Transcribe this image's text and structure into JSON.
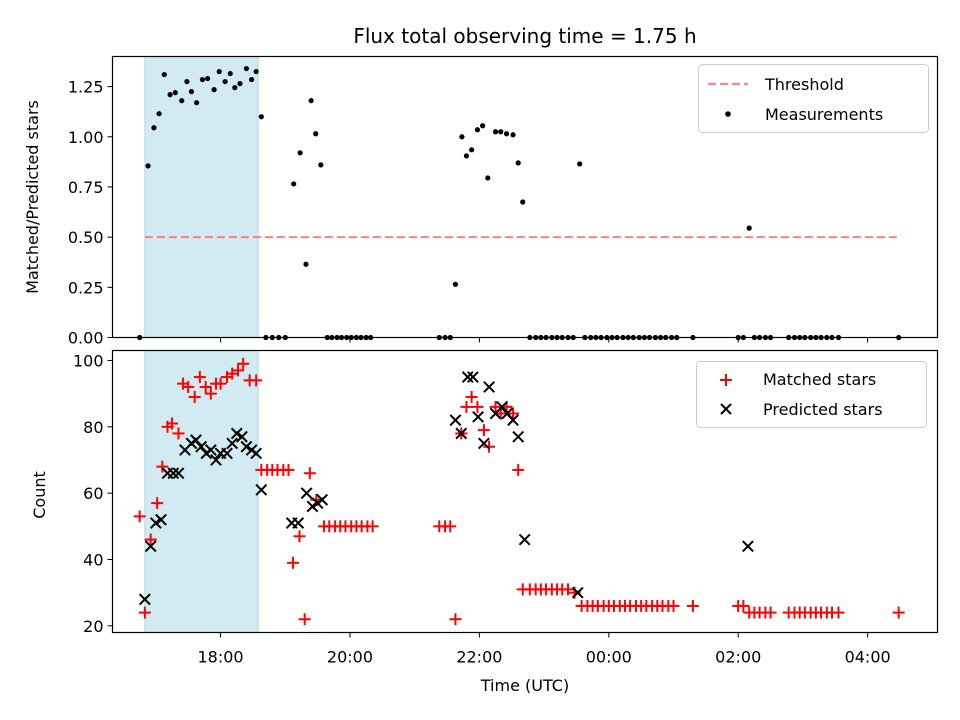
{
  "title": "Flux total observing time = 1.75 h",
  "chart_data": [
    {
      "type": "scatter",
      "panel": "top",
      "ylabel": "Matched/Predicted stars",
      "xlabel": "",
      "ylim": [
        0,
        1.4
      ],
      "xlim": [
        16.33,
        29.08
      ],
      "x_unit": "hours (UTC), values >24 are after midnight",
      "yticks": [
        0,
        0.25,
        0.5,
        0.75,
        1.0,
        1.25
      ],
      "ytick_labels": [
        "0.00",
        "0.25",
        "0.50",
        "0.75",
        "1.00",
        "1.25"
      ],
      "shaded_span": [
        16.83,
        18.58
      ],
      "shaded_color": "#add8e6",
      "threshold": {
        "name": "Threshold",
        "y": 0.5,
        "x": [
          16.83,
          28.5
        ],
        "color": "#ff7f7f"
      },
      "measurements": {
        "name": "Measurements",
        "color": "#000000",
        "points": [
          [
            16.75,
            0
          ],
          [
            16.88,
            0.855
          ],
          [
            16.97,
            1.045
          ],
          [
            17.05,
            1.115
          ],
          [
            17.13,
            1.31
          ],
          [
            17.22,
            1.21
          ],
          [
            17.3,
            1.22
          ],
          [
            17.4,
            1.18
          ],
          [
            17.48,
            1.275
          ],
          [
            17.55,
            1.225
          ],
          [
            17.63,
            1.17
          ],
          [
            17.72,
            1.285
          ],
          [
            17.8,
            1.29
          ],
          [
            17.9,
            1.235
          ],
          [
            17.98,
            1.325
          ],
          [
            18.07,
            1.275
          ],
          [
            18.15,
            1.315
          ],
          [
            18.22,
            1.245
          ],
          [
            18.3,
            1.265
          ],
          [
            18.4,
            1.34
          ],
          [
            18.48,
            1.285
          ],
          [
            18.55,
            1.325
          ],
          [
            18.63,
            1.1
          ],
          [
            18.7,
            0
          ],
          [
            18.8,
            0
          ],
          [
            18.9,
            0
          ],
          [
            19.0,
            0
          ],
          [
            19.13,
            0.765
          ],
          [
            19.23,
            0.92
          ],
          [
            19.32,
            0.365
          ],
          [
            19.4,
            1.18
          ],
          [
            19.47,
            1.015
          ],
          [
            19.55,
            0.86
          ],
          [
            19.65,
            0
          ],
          [
            19.72,
            0
          ],
          [
            19.8,
            0
          ],
          [
            19.87,
            0
          ],
          [
            19.95,
            0
          ],
          [
            20.02,
            0
          ],
          [
            20.1,
            0
          ],
          [
            20.17,
            0
          ],
          [
            20.25,
            0
          ],
          [
            20.32,
            0
          ],
          [
            21.38,
            0
          ],
          [
            21.47,
            0
          ],
          [
            21.55,
            0
          ],
          [
            21.63,
            0.265
          ],
          [
            21.73,
            1.0
          ],
          [
            21.8,
            0.905
          ],
          [
            21.88,
            0.935
          ],
          [
            21.97,
            1.035
          ],
          [
            22.05,
            1.055
          ],
          [
            22.13,
            0.795
          ],
          [
            22.25,
            1.025
          ],
          [
            22.33,
            1.025
          ],
          [
            22.42,
            1.015
          ],
          [
            22.52,
            1.01
          ],
          [
            22.6,
            0.87
          ],
          [
            22.67,
            0.675
          ],
          [
            22.78,
            0
          ],
          [
            22.87,
            0
          ],
          [
            22.95,
            0
          ],
          [
            23.03,
            0
          ],
          [
            23.12,
            0
          ],
          [
            23.2,
            0
          ],
          [
            23.28,
            0
          ],
          [
            23.37,
            0
          ],
          [
            23.45,
            0
          ],
          [
            23.55,
            0.865
          ],
          [
            23.63,
            0
          ],
          [
            23.72,
            0
          ],
          [
            23.8,
            0
          ],
          [
            23.88,
            0
          ],
          [
            23.97,
            0
          ],
          [
            24.05,
            0
          ],
          [
            24.13,
            0
          ],
          [
            24.22,
            0
          ],
          [
            24.3,
            0
          ],
          [
            24.38,
            0
          ],
          [
            24.47,
            0
          ],
          [
            24.55,
            0
          ],
          [
            24.63,
            0
          ],
          [
            24.72,
            0
          ],
          [
            24.8,
            0
          ],
          [
            24.88,
            0
          ],
          [
            24.97,
            0
          ],
          [
            25.05,
            0
          ],
          [
            25.3,
            0
          ],
          [
            26.0,
            0
          ],
          [
            26.08,
            0
          ],
          [
            26.17,
            0.545
          ],
          [
            26.25,
            0
          ],
          [
            26.33,
            0
          ],
          [
            26.42,
            0
          ],
          [
            26.5,
            0
          ],
          [
            26.78,
            0
          ],
          [
            26.87,
            0
          ],
          [
            26.95,
            0
          ],
          [
            27.03,
            0
          ],
          [
            27.12,
            0
          ],
          [
            27.2,
            0
          ],
          [
            27.28,
            0
          ],
          [
            27.37,
            0
          ],
          [
            27.45,
            0
          ],
          [
            27.55,
            0
          ],
          [
            28.48,
            0
          ]
        ]
      },
      "legend": {
        "position": "upper right",
        "entries": [
          "Threshold",
          "Measurements"
        ]
      }
    },
    {
      "type": "scatter",
      "panel": "bottom",
      "ylabel": "Count",
      "xlabel": "Time (UTC)",
      "ylim": [
        18,
        103
      ],
      "xlim": [
        16.33,
        29.08
      ],
      "yticks": [
        20,
        40,
        60,
        80,
        100
      ],
      "ytick_labels": [
        "20",
        "40",
        "60",
        "80",
        "100"
      ],
      "xticks": [
        18,
        20,
        22,
        24,
        26,
        28
      ],
      "xtick_labels": [
        "18:00",
        "20:00",
        "22:00",
        "00:00",
        "02:00",
        "04:00"
      ],
      "shaded_span": [
        16.83,
        18.58
      ],
      "matched": {
        "name": "Matched stars",
        "color": "#ff0000",
        "points": [
          [
            16.75,
            53
          ],
          [
            16.83,
            24
          ],
          [
            16.92,
            46
          ],
          [
            17.02,
            57
          ],
          [
            17.1,
            68
          ],
          [
            17.18,
            80
          ],
          [
            17.25,
            81
          ],
          [
            17.35,
            78
          ],
          [
            17.42,
            93
          ],
          [
            17.5,
            92
          ],
          [
            17.6,
            89
          ],
          [
            17.68,
            95
          ],
          [
            17.77,
            92
          ],
          [
            17.85,
            90
          ],
          [
            17.93,
            93
          ],
          [
            18.0,
            93
          ],
          [
            18.1,
            95
          ],
          [
            18.18,
            96
          ],
          [
            18.27,
            97
          ],
          [
            18.35,
            99
          ],
          [
            18.45,
            94
          ],
          [
            18.55,
            94
          ],
          [
            18.63,
            67
          ],
          [
            18.72,
            67
          ],
          [
            18.8,
            67
          ],
          [
            18.88,
            67
          ],
          [
            18.97,
            67
          ],
          [
            19.05,
            67
          ],
          [
            19.12,
            39
          ],
          [
            19.22,
            47
          ],
          [
            19.3,
            22
          ],
          [
            19.38,
            66
          ],
          [
            19.48,
            58
          ],
          [
            19.6,
            50
          ],
          [
            19.68,
            50
          ],
          [
            19.77,
            50
          ],
          [
            19.85,
            50
          ],
          [
            19.93,
            50
          ],
          [
            20.02,
            50
          ],
          [
            20.1,
            50
          ],
          [
            20.18,
            50
          ],
          [
            20.27,
            50
          ],
          [
            20.35,
            50
          ],
          [
            21.38,
            50
          ],
          [
            21.47,
            50
          ],
          [
            21.55,
            50
          ],
          [
            21.63,
            22
          ],
          [
            21.72,
            78
          ],
          [
            21.8,
            86
          ],
          [
            21.88,
            89
          ],
          [
            21.97,
            86
          ],
          [
            22.07,
            79
          ],
          [
            22.15,
            74
          ],
          [
            22.25,
            86
          ],
          [
            22.33,
            84
          ],
          [
            22.42,
            86
          ],
          [
            22.52,
            84
          ],
          [
            22.6,
            67
          ],
          [
            22.67,
            31
          ],
          [
            22.78,
            31
          ],
          [
            22.87,
            31
          ],
          [
            22.95,
            31
          ],
          [
            23.03,
            31
          ],
          [
            23.12,
            31
          ],
          [
            23.2,
            31
          ],
          [
            23.28,
            31
          ],
          [
            23.37,
            31
          ],
          [
            23.47,
            30
          ],
          [
            23.58,
            26
          ],
          [
            23.67,
            26
          ],
          [
            23.75,
            26
          ],
          [
            23.83,
            26
          ],
          [
            23.92,
            26
          ],
          [
            24.0,
            26
          ],
          [
            24.08,
            26
          ],
          [
            24.17,
            26
          ],
          [
            24.25,
            26
          ],
          [
            24.33,
            26
          ],
          [
            24.42,
            26
          ],
          [
            24.5,
            26
          ],
          [
            24.58,
            26
          ],
          [
            24.67,
            26
          ],
          [
            24.75,
            26
          ],
          [
            24.83,
            26
          ],
          [
            24.92,
            26
          ],
          [
            25.0,
            26
          ],
          [
            25.3,
            26
          ],
          [
            26.0,
            26
          ],
          [
            26.08,
            26
          ],
          [
            26.17,
            24
          ],
          [
            26.25,
            24
          ],
          [
            26.33,
            24
          ],
          [
            26.42,
            24
          ],
          [
            26.5,
            24
          ],
          [
            26.78,
            24
          ],
          [
            26.87,
            24
          ],
          [
            26.95,
            24
          ],
          [
            27.03,
            24
          ],
          [
            27.12,
            24
          ],
          [
            27.2,
            24
          ],
          [
            27.28,
            24
          ],
          [
            27.37,
            24
          ],
          [
            27.45,
            24
          ],
          [
            27.55,
            24
          ],
          [
            28.48,
            24
          ]
        ]
      },
      "predicted": {
        "name": "Predicted stars",
        "color": "#000000",
        "points": [
          [
            16.83,
            28
          ],
          [
            16.92,
            44
          ],
          [
            17.0,
            51
          ],
          [
            17.08,
            52
          ],
          [
            17.18,
            66
          ],
          [
            17.27,
            66
          ],
          [
            17.35,
            66
          ],
          [
            17.45,
            73
          ],
          [
            17.55,
            75
          ],
          [
            17.62,
            76
          ],
          [
            17.7,
            74
          ],
          [
            17.78,
            72
          ],
          [
            17.85,
            73
          ],
          [
            17.93,
            70
          ],
          [
            18.0,
            72
          ],
          [
            18.1,
            72
          ],
          [
            18.18,
            75
          ],
          [
            18.25,
            78
          ],
          [
            18.33,
            77
          ],
          [
            18.4,
            74
          ],
          [
            18.48,
            73
          ],
          [
            18.55,
            72
          ],
          [
            18.63,
            61
          ],
          [
            19.1,
            51
          ],
          [
            19.2,
            51
          ],
          [
            19.33,
            60
          ],
          [
            19.42,
            56
          ],
          [
            19.5,
            57
          ],
          [
            19.57,
            58
          ],
          [
            21.63,
            82
          ],
          [
            21.72,
            78
          ],
          [
            21.82,
            95
          ],
          [
            21.9,
            95
          ],
          [
            21.98,
            83
          ],
          [
            22.07,
            75
          ],
          [
            22.15,
            92
          ],
          [
            22.25,
            84
          ],
          [
            22.35,
            86
          ],
          [
            22.43,
            84
          ],
          [
            22.52,
            82
          ],
          [
            22.6,
            77
          ],
          [
            22.7,
            46
          ],
          [
            23.52,
            30
          ],
          [
            26.15,
            44
          ]
        ]
      },
      "legend": {
        "position": "upper right",
        "entries": [
          "Matched stars",
          "Predicted stars"
        ]
      }
    }
  ]
}
